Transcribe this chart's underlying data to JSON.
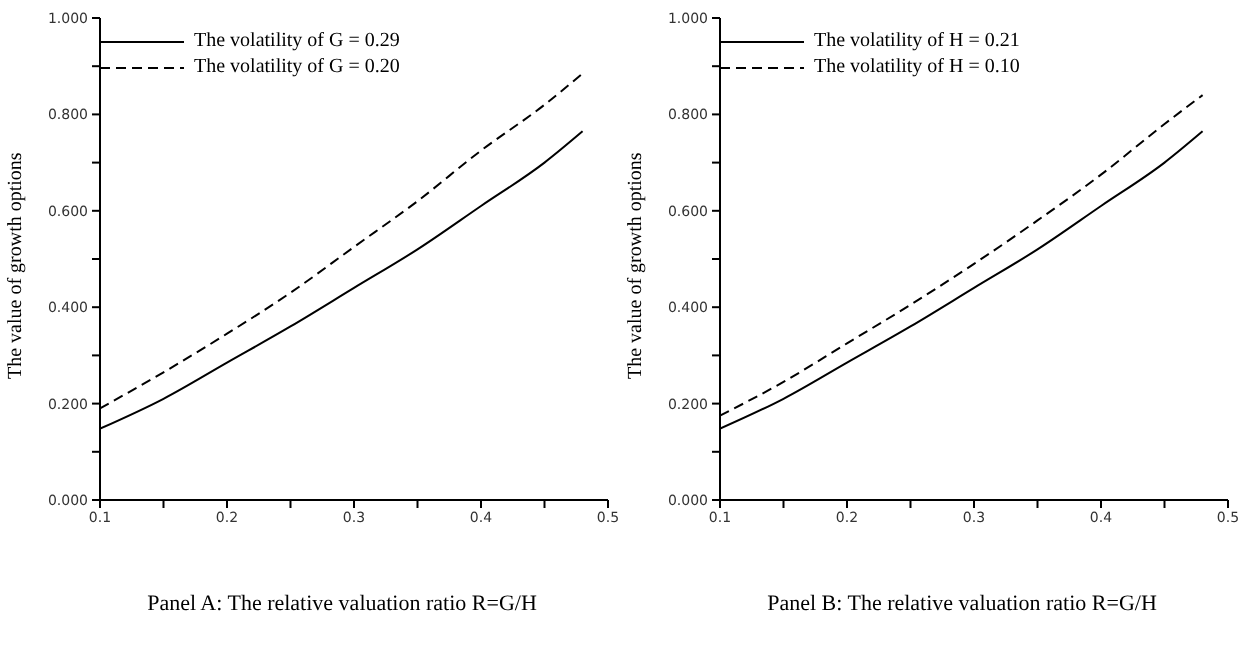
{
  "chart_data": [
    {
      "type": "line",
      "xlabel": "Panel A: The relative valuation ratio R=G/H",
      "ylabel": "The value of growth options",
      "x": [
        0.1,
        0.15,
        0.2,
        0.25,
        0.3,
        0.35,
        0.4,
        0.45,
        0.48
      ],
      "series": [
        {
          "name": "The volatility of G = 0.29",
          "color": "#000000",
          "line_style": "solid",
          "values": [
            0.148,
            0.21,
            0.285,
            0.36,
            0.44,
            0.52,
            0.61,
            0.7,
            0.765
          ]
        },
        {
          "name": "The volatility of G = 0.20",
          "color": "#000000",
          "line_style": "dashed",
          "values": [
            0.19,
            0.265,
            0.345,
            0.43,
            0.525,
            0.62,
            0.725,
            0.82,
            0.885
          ]
        }
      ],
      "xlim": [
        0.1,
        0.5
      ],
      "xticks": [
        0.1,
        {
          "value": 0.15,
          "label": null
        },
        0.2,
        {
          "value": 0.25,
          "label": null
        },
        0.3,
        {
          "value": 0.35,
          "label": null
        },
        0.4,
        {
          "value": 0.45,
          "label": null
        },
        0.5
      ],
      "ylim": [
        0,
        1
      ],
      "yticks": [
        {
          "value": 0,
          "label": "0.000"
        },
        {
          "value": 0.1,
          "label": null
        },
        {
          "value": 0.2,
          "label": "0.200"
        },
        {
          "value": 0.3,
          "label": null
        },
        {
          "value": 0.4,
          "label": "0.400"
        },
        {
          "value": 0.5,
          "label": null
        },
        {
          "value": 0.6,
          "label": "0.600"
        },
        {
          "value": 0.7,
          "label": null
        },
        {
          "value": 0.8,
          "label": "0.800"
        },
        {
          "value": 0.9,
          "label": null
        },
        {
          "value": 1,
          "label": "1.000"
        }
      ],
      "legend": "top left",
      "grid": false,
      "marker": "none"
    },
    {
      "type": "line",
      "xlabel": "Panel B: The relative valuation ratio R=G/H",
      "ylabel": "The value of growth options",
      "x": [
        0.1,
        0.15,
        0.2,
        0.25,
        0.3,
        0.35,
        0.4,
        0.45,
        0.48
      ],
      "series": [
        {
          "name": "The volatility of H = 0.21",
          "color": "#000000",
          "line_style": "solid",
          "values": [
            0.148,
            0.21,
            0.285,
            0.36,
            0.44,
            0.52,
            0.61,
            0.7,
            0.765
          ]
        },
        {
          "name": "The volatility of H = 0.10",
          "color": "#000000",
          "line_style": "dashed",
          "values": [
            0.175,
            0.245,
            0.325,
            0.405,
            0.49,
            0.58,
            0.675,
            0.78,
            0.84
          ]
        }
      ],
      "xlim": [
        0.1,
        0.5
      ],
      "xticks": [
        0.1,
        {
          "value": 0.15,
          "label": null
        },
        0.2,
        {
          "value": 0.25,
          "label": null
        },
        0.3,
        {
          "value": 0.35,
          "label": null
        },
        0.4,
        {
          "value": 0.45,
          "label": null
        },
        0.5
      ],
      "ylim": [
        0,
        1
      ],
      "yticks": [
        {
          "value": 0,
          "label": "0.000"
        },
        {
          "value": 0.1,
          "label": null
        },
        {
          "value": 0.2,
          "label": "0.200"
        },
        {
          "value": 0.3,
          "label": null
        },
        {
          "value": 0.4,
          "label": "0.400"
        },
        {
          "value": 0.5,
          "label": null
        },
        {
          "value": 0.6,
          "label": "0.600"
        },
        {
          "value": 0.7,
          "label": null
        },
        {
          "value": 0.8,
          "label": "0.800"
        },
        {
          "value": 0.9,
          "label": null
        },
        {
          "value": 1,
          "label": "1.000"
        }
      ],
      "legend": "top left",
      "grid": false,
      "marker": "none"
    }
  ]
}
